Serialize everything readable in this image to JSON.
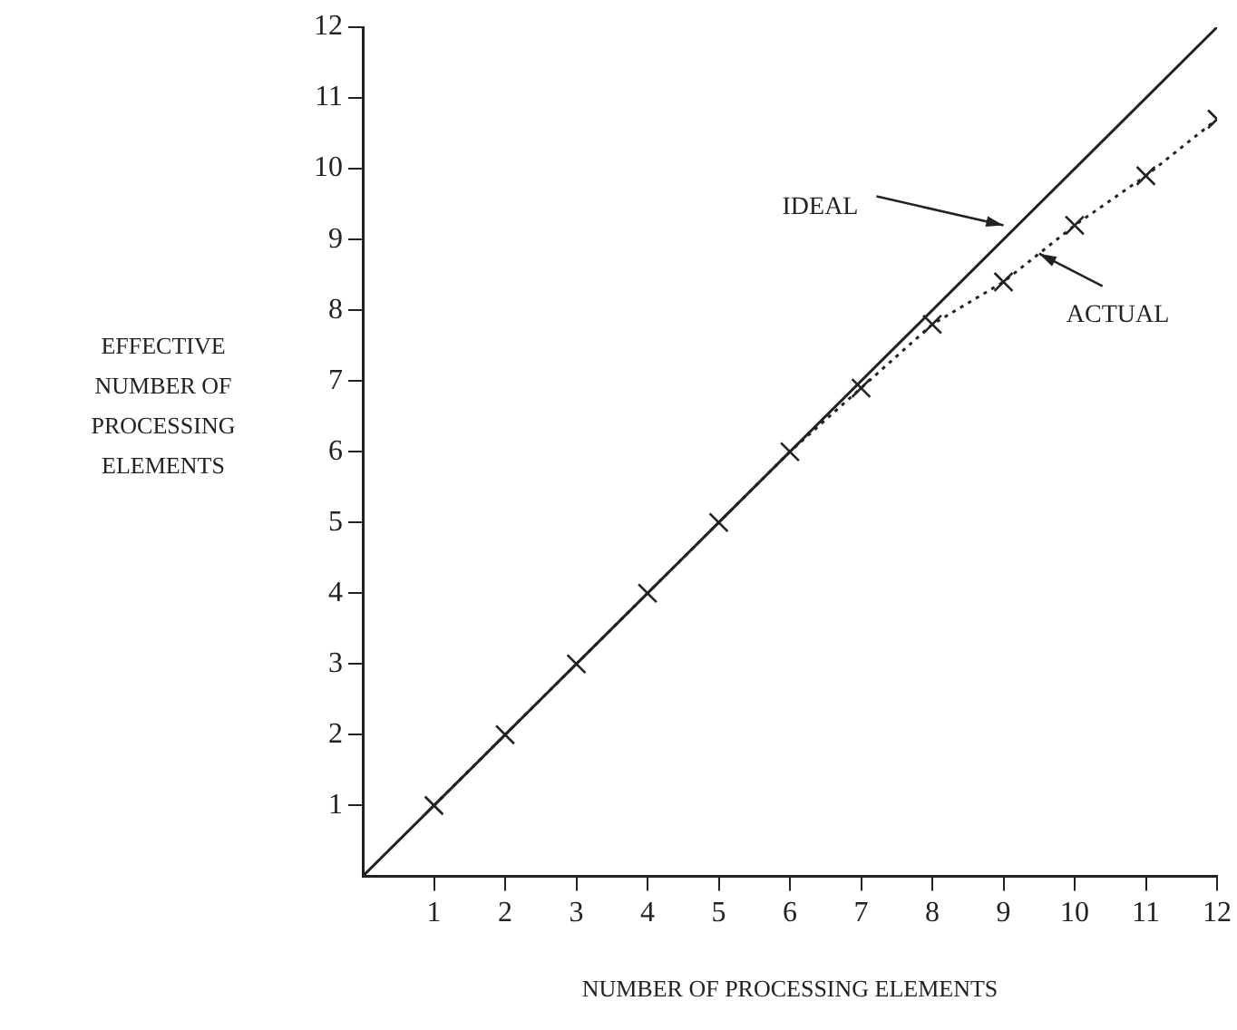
{
  "chart_data": {
    "type": "line",
    "xlabel": "NUMBER OF PROCESSING ELEMENTS",
    "ylabel": "EFFECTIVE NUMBER OF PROCESSING ELEMENTS",
    "xlim": [
      0,
      12
    ],
    "ylim": [
      0,
      12
    ],
    "xticks": [
      1,
      2,
      3,
      4,
      5,
      6,
      7,
      8,
      9,
      10,
      11,
      12
    ],
    "yticks": [
      1,
      2,
      3,
      4,
      5,
      6,
      7,
      8,
      9,
      10,
      11,
      12
    ],
    "grid": false,
    "legend": false,
    "series": [
      {
        "color": "#222222",
        "x": [
          0,
          12
        ],
        "values": [
          0,
          12
        ],
        "marker": "none",
        "line_style": "solid"
      },
      {
        "color": "#222222",
        "x": [
          1,
          2,
          3,
          4,
          5,
          6,
          7,
          8,
          9,
          10,
          11,
          12
        ],
        "values": [
          1,
          2,
          3,
          4,
          5,
          6,
          6.9,
          7.8,
          8.4,
          9.2,
          9.9,
          10.7
        ],
        "marker": "cross",
        "line_style": "dotted"
      }
    ],
    "annotations": [
      {
        "text": "IDEAL",
        "x": 9,
        "y": 9.2
      },
      {
        "text": "ACTUAL",
        "x": 9.5,
        "y": 8.8
      }
    ]
  }
}
